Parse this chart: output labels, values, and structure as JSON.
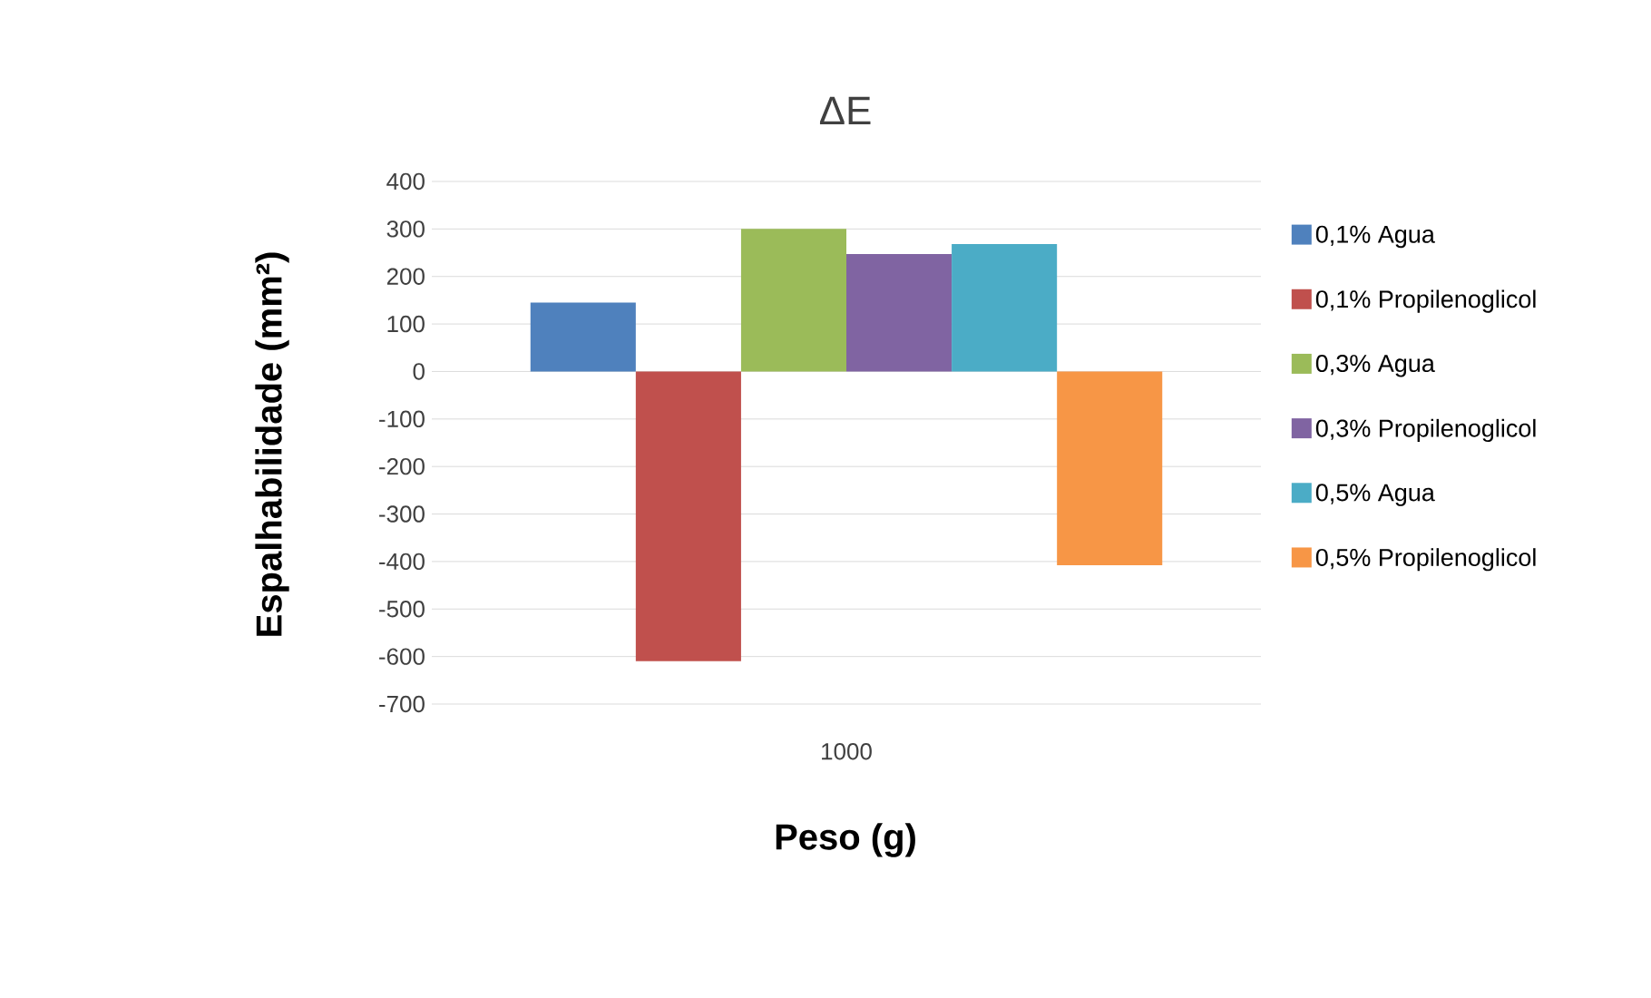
{
  "chart_data": {
    "type": "bar",
    "title": "ΔE",
    "xlabel": "Peso (g)",
    "ylabel": "Espalhabilidade (mm²)",
    "categories": [
      "1000"
    ],
    "series": [
      {
        "name": "0,1% Agua",
        "color": "#4f81bd",
        "values": [
          145
        ]
      },
      {
        "name": "0,1% Propilenoglicol",
        "color": "#c0504d",
        "values": [
          -610
        ]
      },
      {
        "name": "0,3% Agua",
        "color": "#9bbb59",
        "values": [
          300
        ]
      },
      {
        "name": "0,3% Propilenoglicol",
        "color": "#8064a2",
        "values": [
          247
        ]
      },
      {
        "name": "0,5% Agua",
        "color": "#4bacc6",
        "values": [
          268
        ]
      },
      {
        "name": "0,5% Propilenoglicol",
        "color": "#f79646",
        "values": [
          -408
        ]
      }
    ],
    "ylim": [
      -700,
      400
    ],
    "yticks": [
      -700,
      -600,
      -500,
      -400,
      -300,
      -200,
      -100,
      0,
      100,
      200,
      300,
      400
    ],
    "grid": "y",
    "legend": "right"
  }
}
